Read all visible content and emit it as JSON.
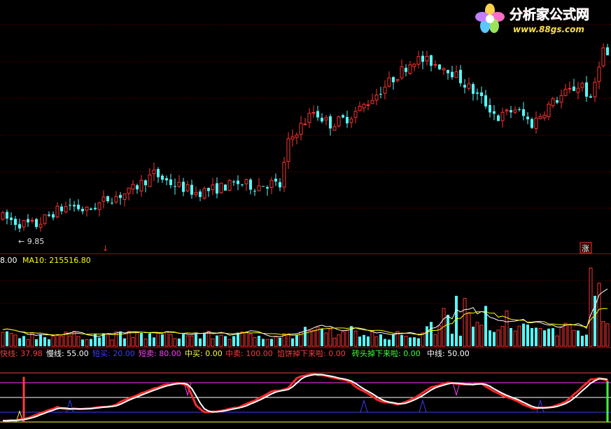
{
  "watermark": {
    "title": "分析家公式网",
    "url": "www.88gs.com"
  },
  "chart_data": [
    {
      "type": "candlestick",
      "panel": "price",
      "annotations": {
        "low_marker": "← 9.85",
        "left_marker": "↓",
        "right_badge": "涨"
      },
      "colors": {
        "up": "#ff3232",
        "down": "#54fcfc",
        "grid": "#990000"
      },
      "anchors": [
        [
          0,
          10.2
        ],
        [
          4,
          10.0
        ],
        [
          8,
          9.95
        ],
        [
          12,
          10.35
        ],
        [
          16,
          10.6
        ],
        [
          20,
          10.4
        ],
        [
          25,
          10.8
        ],
        [
          30,
          11.0
        ],
        [
          36,
          11.6
        ],
        [
          40,
          11.3
        ],
        [
          46,
          11.0
        ],
        [
          50,
          11.1
        ],
        [
          56,
          11.3
        ],
        [
          60,
          11.2
        ],
        [
          64,
          11.3
        ],
        [
          66,
          11.2
        ],
        [
          68,
          12.6
        ],
        [
          70,
          13.0
        ],
        [
          74,
          13.6
        ],
        [
          78,
          13.2
        ],
        [
          82,
          13.4
        ],
        [
          86,
          13.8
        ],
        [
          90,
          14.3
        ],
        [
          94,
          14.8
        ],
        [
          98,
          15.3
        ],
        [
          102,
          15.2
        ],
        [
          106,
          15.0
        ],
        [
          110,
          14.5
        ],
        [
          114,
          14.0
        ],
        [
          118,
          13.4
        ],
        [
          122,
          13.7
        ],
        [
          126,
          13.2
        ],
        [
          130,
          13.8
        ],
        [
          134,
          14.2
        ],
        [
          138,
          14.5
        ],
        [
          140,
          13.9
        ],
        [
          142,
          15.2
        ],
        [
          143,
          15.6
        ],
        [
          144,
          15.4
        ]
      ],
      "y_range": [
        9.3,
        16.3
      ]
    },
    {
      "type": "bar",
      "panel": "volume",
      "legend": [
        {
          "text": "8.00",
          "color": "#ffffff"
        },
        {
          "text": "MA10: 215516.80",
          "color": "#ffff00"
        }
      ],
      "ma_colors": {
        "ma5": "#ffffff",
        "ma10": "#ffff00"
      },
      "spikes": [
        [
          105,
          3.0
        ],
        [
          106,
          2.5
        ],
        [
          108,
          4.0
        ],
        [
          110,
          3.8
        ],
        [
          111,
          2.6
        ],
        [
          115,
          3.2
        ],
        [
          120,
          2.8
        ],
        [
          140,
          6.2
        ],
        [
          141,
          4.0
        ],
        [
          142,
          5.0
        ]
      ]
    },
    {
      "type": "line",
      "panel": "indicator",
      "legend": [
        {
          "text": "快线: 37.98",
          "color": "#ff3c3c"
        },
        {
          "text": "慢线: 55.00",
          "color": "#ffffff"
        },
        {
          "text": "短买: 20.00",
          "color": "#3c3cff"
        },
        {
          "text": "短卖: 80.00",
          "color": "#ff3cff"
        },
        {
          "text": "中买: 0.00",
          "color": "#ffff3c"
        },
        {
          "text": "中卖: 100.00",
          "color": "#ff3c3c"
        },
        {
          "text": "馅饼掉下来啦: 0.00",
          "color": "#ff3c3c"
        },
        {
          "text": "砖头掉下来啦: 0.00",
          "color": "#3cff3c"
        },
        {
          "text": "中线: 50.00",
          "color": "#ffffff"
        }
      ],
      "levels": {
        "short_buy": 20,
        "short_sell": 80,
        "mid_buy": 0,
        "mid_sell": 100,
        "mid_line": 50
      },
      "fast_anchors": [
        [
          0,
          2
        ],
        [
          3,
          4
        ],
        [
          6,
          8
        ],
        [
          9,
          18
        ],
        [
          13,
          30
        ],
        [
          16,
          26
        ],
        [
          20,
          28
        ],
        [
          26,
          32
        ],
        [
          30,
          48
        ],
        [
          34,
          62
        ],
        [
          38,
          74
        ],
        [
          42,
          80
        ],
        [
          44,
          74
        ],
        [
          46,
          34
        ],
        [
          48,
          20
        ],
        [
          52,
          22
        ],
        [
          56,
          30
        ],
        [
          60,
          44
        ],
        [
          64,
          62
        ],
        [
          66,
          64
        ],
        [
          68,
          70
        ],
        [
          70,
          90
        ],
        [
          74,
          98
        ],
        [
          78,
          92
        ],
        [
          82,
          84
        ],
        [
          86,
          62
        ],
        [
          90,
          42
        ],
        [
          94,
          36
        ],
        [
          98,
          48
        ],
        [
          102,
          70
        ],
        [
          106,
          80
        ],
        [
          110,
          76
        ],
        [
          114,
          78
        ],
        [
          118,
          58
        ],
        [
          122,
          44
        ],
        [
          126,
          28
        ],
        [
          130,
          30
        ],
        [
          134,
          40
        ],
        [
          138,
          72
        ],
        [
          140,
          86
        ],
        [
          142,
          90
        ],
        [
          144,
          84
        ]
      ],
      "purple_spikes": [
        44,
        108
      ],
      "blue_spikes": [
        16,
        86,
        100,
        128
      ],
      "yellow_spike": 4,
      "red_spike": 5,
      "green_spike": 144
    }
  ]
}
